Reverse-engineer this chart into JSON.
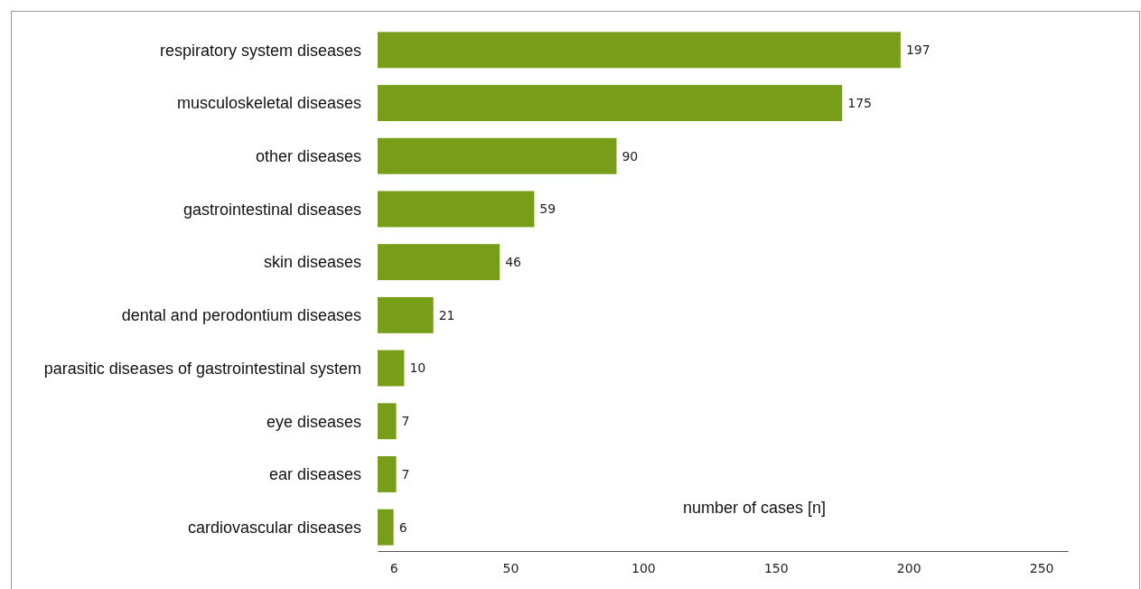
{
  "chart_data": {
    "type": "bar",
    "orientation": "horizontal",
    "xlabel": "number of cases [n]",
    "categories": [
      "respiratory system diseases",
      "musculoskeletal diseases",
      "other diseases",
      "gastrointestinal diseases",
      "skin diseases",
      "dental and perodontium diseases",
      "parasitic diseases of gastrointestinal system",
      "eye diseases",
      "ear diseases",
      "cardiovascular diseases"
    ],
    "values": [
      197,
      175,
      90,
      59,
      46,
      21,
      10,
      7,
      7,
      6
    ],
    "color": "#789d18",
    "xlim": [
      0,
      260
    ],
    "xticks": [
      6,
      50,
      100,
      150,
      200,
      250
    ],
    "data_labels": true,
    "grid": false
  }
}
